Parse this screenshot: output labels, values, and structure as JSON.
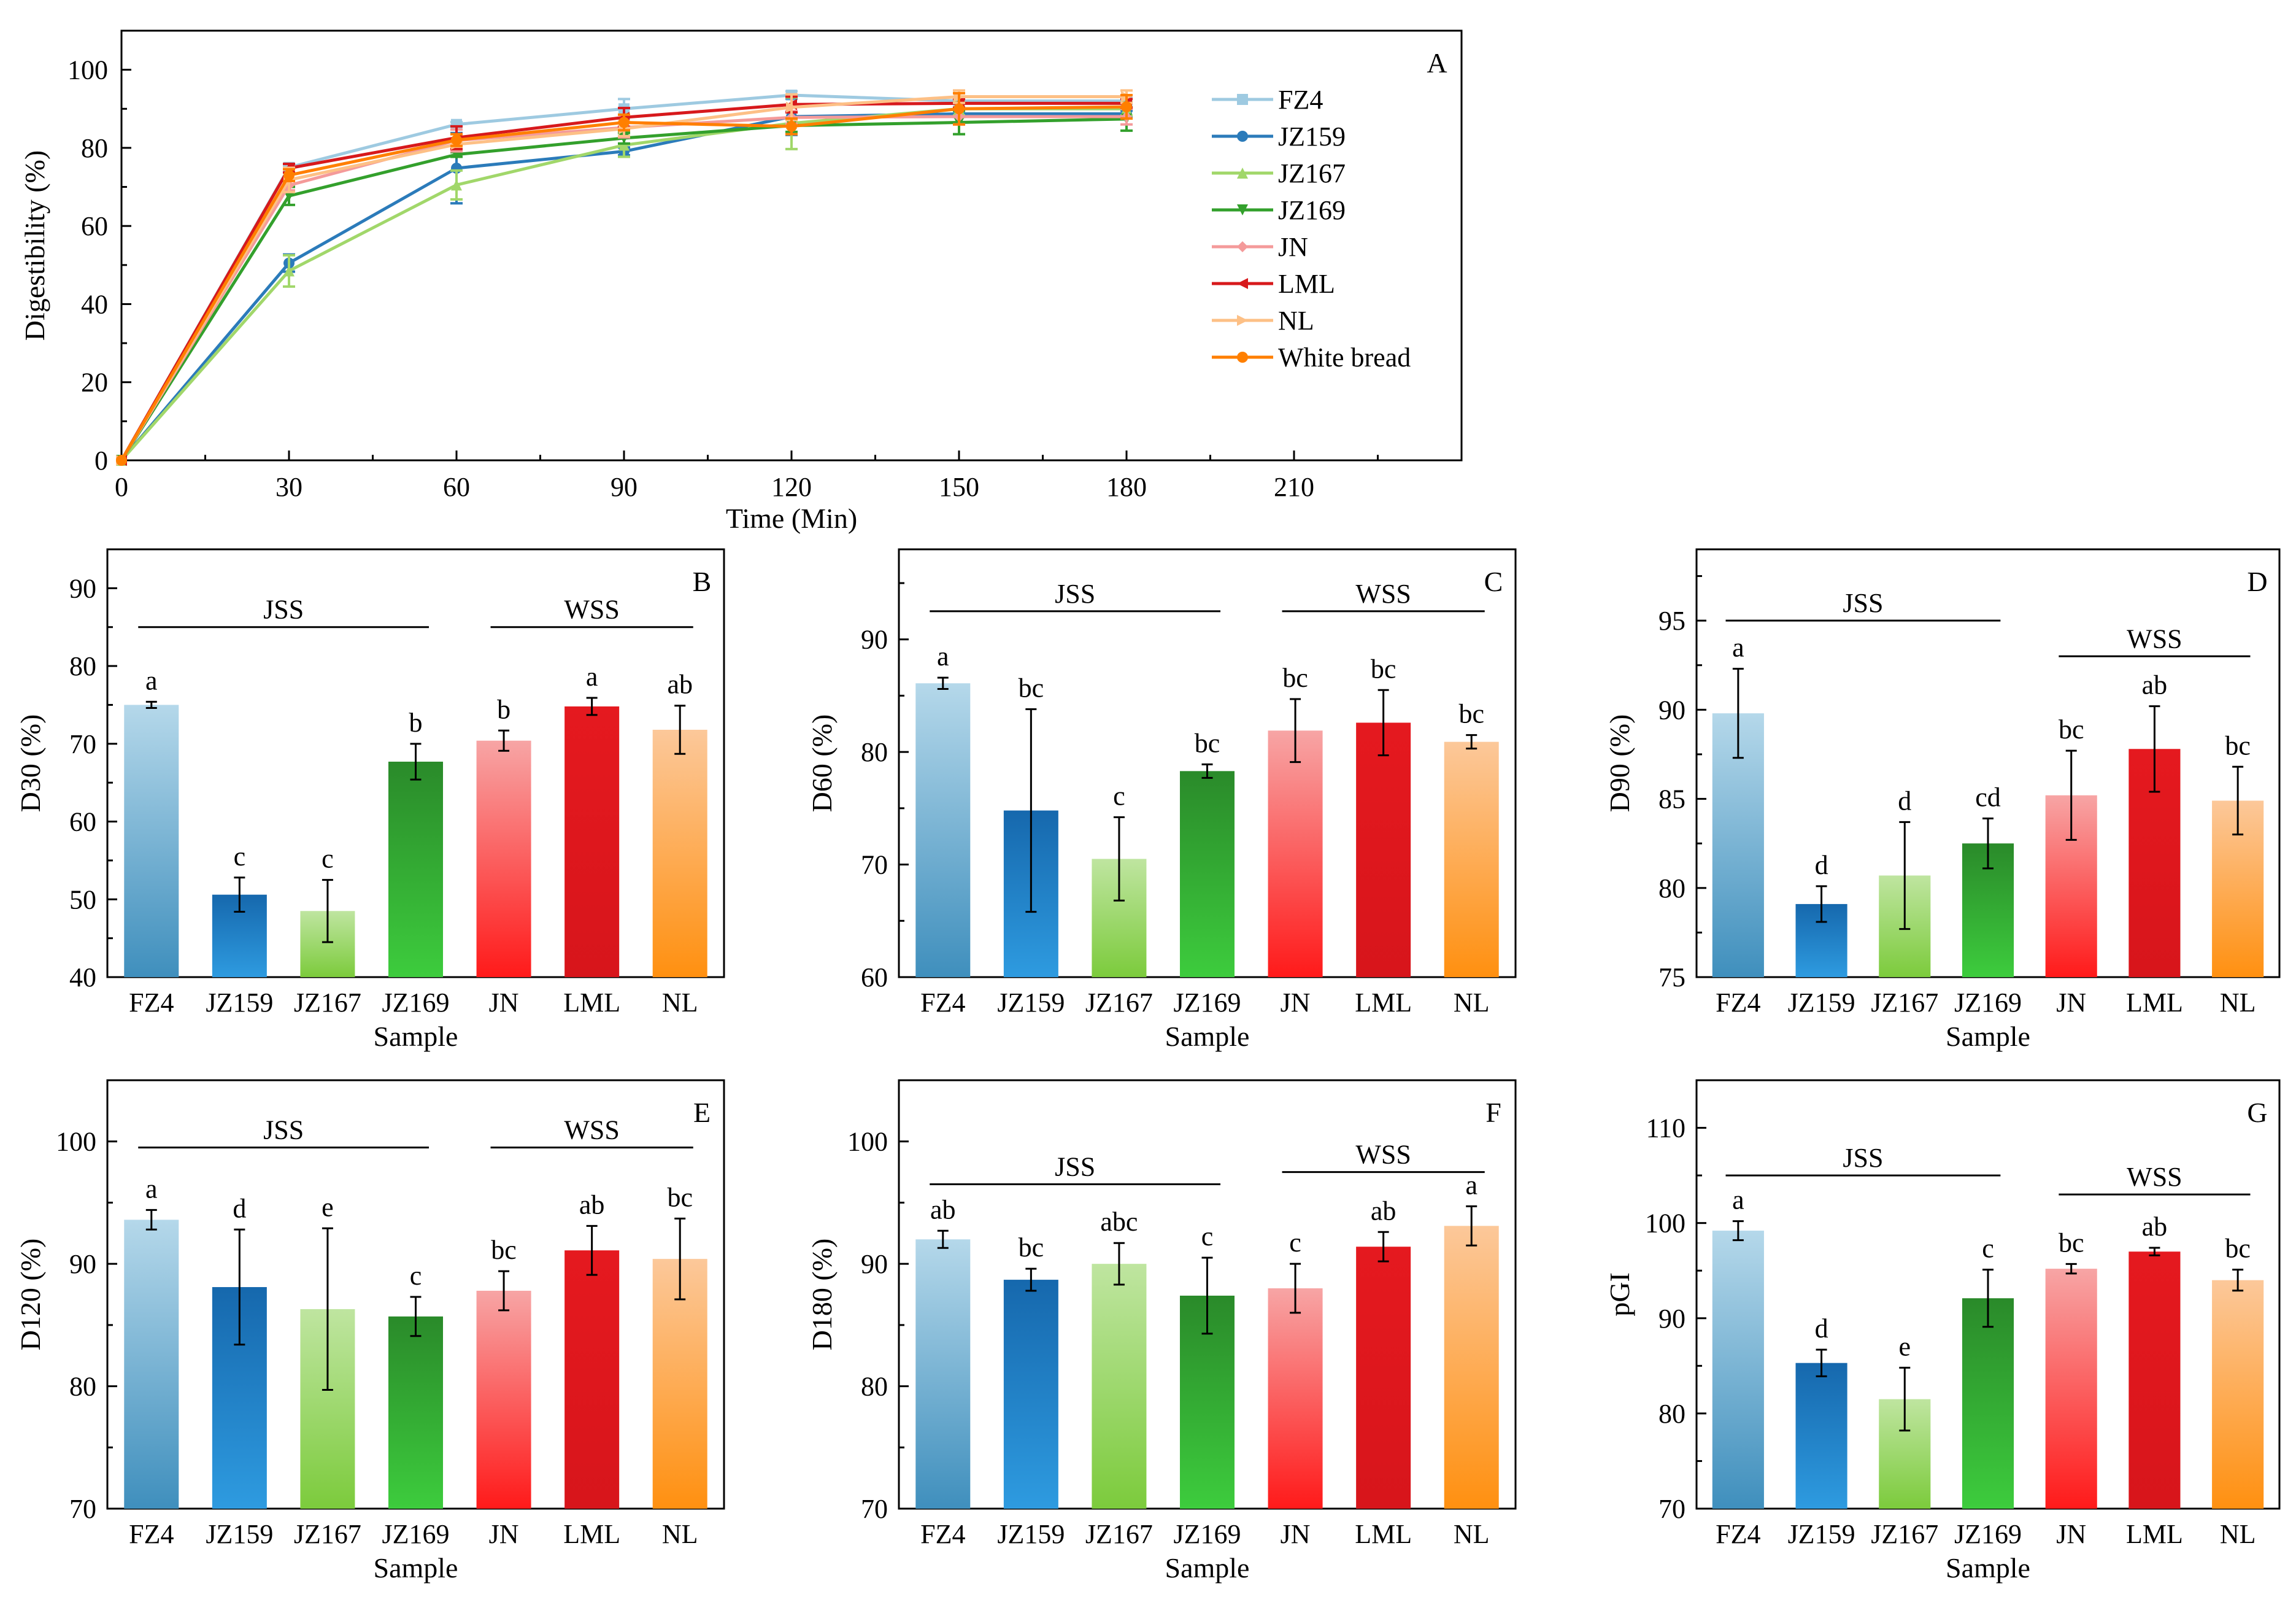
{
  "chart_data": [
    {
      "panel": "A",
      "type": "line",
      "xlabel": "Time (Min)",
      "ylabel": "Digestibility (%)",
      "xlim": [
        0,
        240
      ],
      "ylim": [
        0,
        110
      ],
      "xticks": [
        0,
        30,
        60,
        90,
        120,
        150,
        180,
        210
      ],
      "yticks": [
        0,
        20,
        40,
        60,
        80,
        100
      ],
      "x": [
        0,
        30,
        60,
        90,
        120,
        150,
        180
      ],
      "legend_position": "top-right",
      "series": [
        {
          "name": "FZ4",
          "color": "#9ecae1",
          "marker": "square",
          "values": [
            0,
            75,
            86,
            90,
            93.5,
            92,
            92
          ],
          "errors": [
            0,
            0.5,
            0.6,
            2.5,
            1.0,
            0.8,
            0.8
          ]
        },
        {
          "name": "JZ159",
          "color": "#2b7bba",
          "marker": "circle",
          "values": [
            0,
            50.5,
            74.8,
            79.1,
            88,
            88.7,
            88.7
          ],
          "errors": [
            0,
            2.2,
            9.0,
            1.0,
            4.7,
            0.8,
            0.8
          ]
        },
        {
          "name": "JZ167",
          "color": "#a1d76a",
          "marker": "triangle",
          "values": [
            0,
            48.5,
            70.5,
            80.7,
            86.3,
            90,
            90
          ],
          "errors": [
            0,
            4.0,
            3.7,
            3.0,
            6.6,
            1.7,
            1.7
          ]
        },
        {
          "name": "JZ169",
          "color": "#33a02c",
          "marker": "triangle-down",
          "values": [
            0,
            67.7,
            78.3,
            82.5,
            85.7,
            86.5,
            87.4
          ],
          "errors": [
            0,
            2.3,
            0.6,
            1.4,
            1.6,
            3.0,
            3.0
          ]
        },
        {
          "name": "JN",
          "color": "#f49a9a",
          "marker": "diamond",
          "values": [
            0,
            70.4,
            81.9,
            85.2,
            87.8,
            88,
            88
          ],
          "errors": [
            0,
            1.3,
            2.8,
            2.5,
            1.6,
            2.0,
            2.0
          ]
        },
        {
          "name": "LML",
          "color": "#d7191c",
          "marker": "triangle-left",
          "values": [
            0,
            74.8,
            82.6,
            87.8,
            91.1,
            91.4,
            91.4
          ],
          "errors": [
            0,
            1.1,
            2.9,
            2.4,
            2.0,
            1.1,
            1.1
          ]
        },
        {
          "name": "NL",
          "color": "#fdc086",
          "marker": "triangle-right",
          "values": [
            0,
            71.8,
            80.9,
            84.9,
            90.4,
            93.1,
            93.1
          ],
          "errors": [
            0,
            3.1,
            0.6,
            1.9,
            3.3,
            1.6,
            1.6
          ]
        },
        {
          "name": "White bread",
          "color": "#ff7f00",
          "marker": "hexagon",
          "values": [
            0,
            73,
            82,
            86.5,
            85.5,
            90,
            90.5
          ],
          "errors": [
            0,
            1.5,
            1.5,
            2.0,
            2.0,
            4.0,
            3.0
          ]
        }
      ],
      "panel_letter": "A"
    },
    {
      "panel": "B",
      "type": "bar",
      "panel_letter": "B",
      "xlabel": "Sample",
      "ylabel": "D30 (%)",
      "ylim": [
        40,
        95
      ],
      "yticks": [
        40,
        50,
        60,
        70,
        80,
        90
      ],
      "categories": [
        "FZ4",
        "JZ159",
        "JZ167",
        "JZ169",
        "JN",
        "LML",
        "NL"
      ],
      "values": [
        75.0,
        50.6,
        48.5,
        67.7,
        70.4,
        74.8,
        71.8
      ],
      "errors": [
        0.4,
        2.2,
        4.0,
        2.3,
        1.3,
        1.1,
        3.1
      ],
      "sig": [
        "a",
        "c",
        "c",
        "b",
        "b",
        "a",
        "ab"
      ],
      "groups": [
        {
          "label": "JSS",
          "from": 0,
          "to": 3,
          "y": 85
        },
        {
          "label": "WSS",
          "from": 4,
          "to": 6,
          "y": 85
        }
      ]
    },
    {
      "panel": "C",
      "type": "bar",
      "panel_letter": "C",
      "xlabel": "Sample",
      "ylabel": "D60 (%)",
      "ylim": [
        60,
        98
      ],
      "yticks": [
        60,
        70,
        80,
        90
      ],
      "categories": [
        "FZ4",
        "JZ159",
        "JZ167",
        "JZ169",
        "JN",
        "LML",
        "NL"
      ],
      "values": [
        86.1,
        74.8,
        70.5,
        78.3,
        81.9,
        82.6,
        80.9
      ],
      "errors": [
        0.5,
        9.0,
        3.7,
        0.6,
        2.8,
        2.9,
        0.6
      ],
      "sig": [
        "a",
        "bc",
        "c",
        "bc",
        "bc",
        "bc",
        "bc"
      ],
      "groups": [
        {
          "label": "JSS",
          "from": 0,
          "to": 3,
          "y": 92.5
        },
        {
          "label": "WSS",
          "from": 4,
          "to": 6,
          "y": 92.5
        }
      ]
    },
    {
      "panel": "D",
      "type": "bar",
      "panel_letter": "D",
      "xlabel": "Sample",
      "ylabel": "D90 (%)",
      "ylim": [
        75,
        99
      ],
      "yticks": [
        75,
        80,
        85,
        90,
        95
      ],
      "categories": [
        "FZ4",
        "JZ159",
        "JZ167",
        "JZ169",
        "JN",
        "LML",
        "NL"
      ],
      "values": [
        89.8,
        79.1,
        80.7,
        82.5,
        85.2,
        87.8,
        84.9
      ],
      "errors": [
        2.5,
        1.0,
        3.0,
        1.4,
        2.5,
        2.4,
        1.9
      ],
      "sig": [
        "a",
        "d",
        "d",
        "cd",
        "bc",
        "ab",
        "bc"
      ],
      "groups": [
        {
          "label": "JSS",
          "from": 0,
          "to": 3,
          "y": 95
        },
        {
          "label": "WSS",
          "from": 4,
          "to": 6,
          "y": 93
        }
      ]
    },
    {
      "panel": "E",
      "type": "bar",
      "panel_letter": "E",
      "xlabel": "Sample",
      "ylabel": "D120 (%)",
      "ylim": [
        70,
        105
      ],
      "yticks": [
        70,
        80,
        90,
        100
      ],
      "categories": [
        "FZ4",
        "JZ159",
        "JZ167",
        "JZ169",
        "JN",
        "LML",
        "NL"
      ],
      "values": [
        93.6,
        88.1,
        86.3,
        85.7,
        87.8,
        91.1,
        90.4
      ],
      "errors": [
        0.8,
        4.7,
        6.6,
        1.6,
        1.6,
        2.0,
        3.3
      ],
      "sig": [
        "a",
        "d",
        "e",
        "c",
        "bc",
        "ab",
        "bc"
      ],
      "groups": [
        {
          "label": "JSS",
          "from": 0,
          "to": 3,
          "y": 99.5
        },
        {
          "label": "WSS",
          "from": 4,
          "to": 6,
          "y": 99.5
        }
      ]
    },
    {
      "panel": "F",
      "type": "bar",
      "panel_letter": "F",
      "xlabel": "Sample",
      "ylabel": "D180 (%)",
      "ylim": [
        70,
        105
      ],
      "yticks": [
        70,
        80,
        90,
        100
      ],
      "categories": [
        "FZ4",
        "JZ159",
        "JZ167",
        "JZ169",
        "JN",
        "LML",
        "NL"
      ],
      "values": [
        92.0,
        88.7,
        90.0,
        87.4,
        88.0,
        91.4,
        93.1
      ],
      "errors": [
        0.7,
        0.9,
        1.7,
        3.1,
        2.0,
        1.2,
        1.6
      ],
      "sig": [
        "ab",
        "bc",
        "abc",
        "c",
        "c",
        "ab",
        "a"
      ],
      "groups": [
        {
          "label": "JSS",
          "from": 0,
          "to": 3,
          "y": 96.5
        },
        {
          "label": "WSS",
          "from": 4,
          "to": 6,
          "y": 97.5
        }
      ]
    },
    {
      "panel": "G",
      "type": "bar",
      "panel_letter": "G",
      "xlabel": "Sample",
      "ylabel": "pGI",
      "ylim": [
        70,
        115
      ],
      "yticks": [
        70,
        80,
        90,
        100,
        110
      ],
      "categories": [
        "FZ4",
        "JZ159",
        "JZ167",
        "JZ169",
        "JN",
        "LML",
        "NL"
      ],
      "values": [
        99.2,
        85.3,
        81.5,
        92.1,
        95.2,
        97.0,
        94.0
      ],
      "errors": [
        1.0,
        1.4,
        3.3,
        3.0,
        0.5,
        0.4,
        1.1
      ],
      "sig": [
        "a",
        "d",
        "e",
        "c",
        "bc",
        "ab",
        "bc"
      ],
      "groups": [
        {
          "label": "JSS",
          "from": 0,
          "to": 3,
          "y": 105
        },
        {
          "label": "WSS",
          "from": 4,
          "to": 6,
          "y": 103
        }
      ]
    }
  ],
  "bar_colors": [
    {
      "top": "#b5d8ea",
      "bottom": "#3f8fbd"
    },
    {
      "top": "#1668ad",
      "bottom": "#2e9be0"
    },
    {
      "top": "#bfe5a0",
      "bottom": "#7ccb3c"
    },
    {
      "top": "#2a8a2a",
      "bottom": "#3dcc3d"
    },
    {
      "top": "#f7a5a5",
      "bottom": "#ff1a1a"
    },
    {
      "top": "#e5191f",
      "bottom": "#d7151b"
    },
    {
      "top": "#fcc89a",
      "bottom": "#ff9010"
    }
  ]
}
